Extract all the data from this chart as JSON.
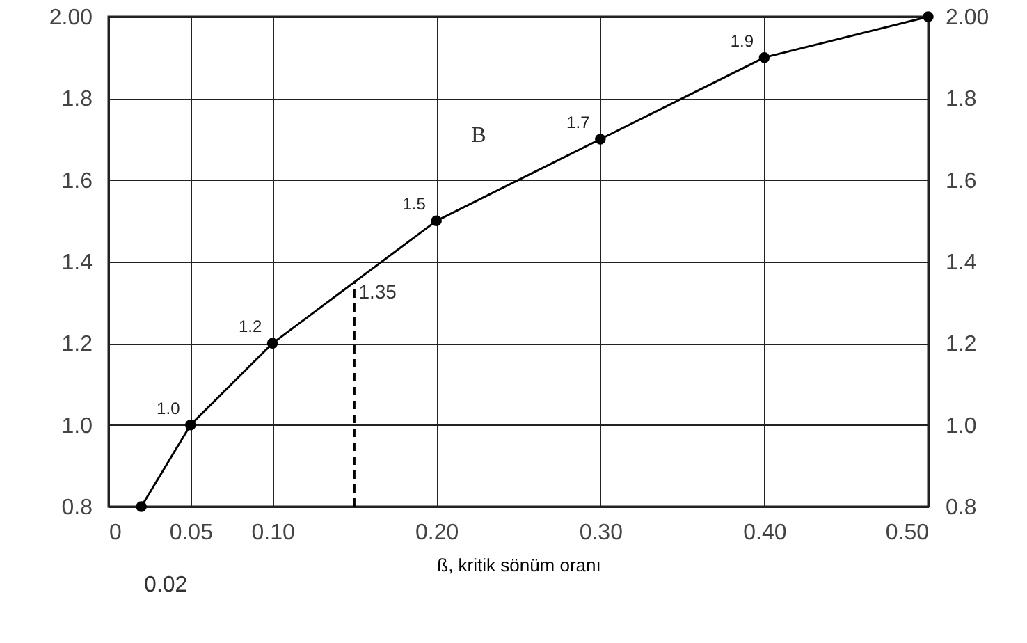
{
  "chart_data": {
    "type": "line",
    "xlabel": "ß, kritik sönüm oranı",
    "x": [
      0.02,
      0.05,
      0.1,
      0.2,
      0.3,
      0.4,
      0.5
    ],
    "series": [
      {
        "color": "#000000",
        "values": [
          0.8,
          1.0,
          1.2,
          1.5,
          1.7,
          1.9,
          2.0
        ],
        "value_labels": [
          null,
          "1.0",
          "1.2",
          "1.5",
          "1.7",
          "1.9",
          null
        ]
      },
      {
        "type": "line",
        "color": "#000000",
        "line_style": "dashed",
        "marker": "none",
        "x": [
          0.15,
          0.15
        ],
        "values": [
          0.8,
          1.35
        ]
      }
    ],
    "xlim": [
      0,
      0.5
    ],
    "xticks": [
      0,
      {
        "value": 0.05,
        "label": "0.05"
      },
      {
        "value": 0.1,
        "label": "0.10"
      },
      {
        "value": 0.2,
        "label": "0.20"
      },
      {
        "value": 0.3,
        "label": "0.30"
      },
      {
        "value": 0.4,
        "label": "0.40"
      },
      {
        "value": 0.5,
        "label": "0.50"
      }
    ],
    "ylim": [
      0.8,
      2
    ],
    "yticks": [
      0.8,
      {
        "value": 1,
        "label": "1.0"
      },
      1.2,
      1.4,
      1.6,
      1.8,
      {
        "value": 2,
        "label": "2.00"
      }
    ],
    "y2lim": [
      0.8,
      2
    ],
    "y2ticks": [
      0.8,
      {
        "value": 1,
        "label": "1.0"
      },
      1.2,
      1.4,
      1.6,
      1.8,
      {
        "value": 2,
        "label": "2.00"
      }
    ],
    "annotations": [
      {
        "text": "0.02",
        "x": 0.02,
        "y": 0.8
      },
      {
        "text": "1.35",
        "x": 0.15,
        "y": 1.35
      },
      "B"
    ],
    "grid": true,
    "marker": "circle",
    "line_style": "solid"
  }
}
